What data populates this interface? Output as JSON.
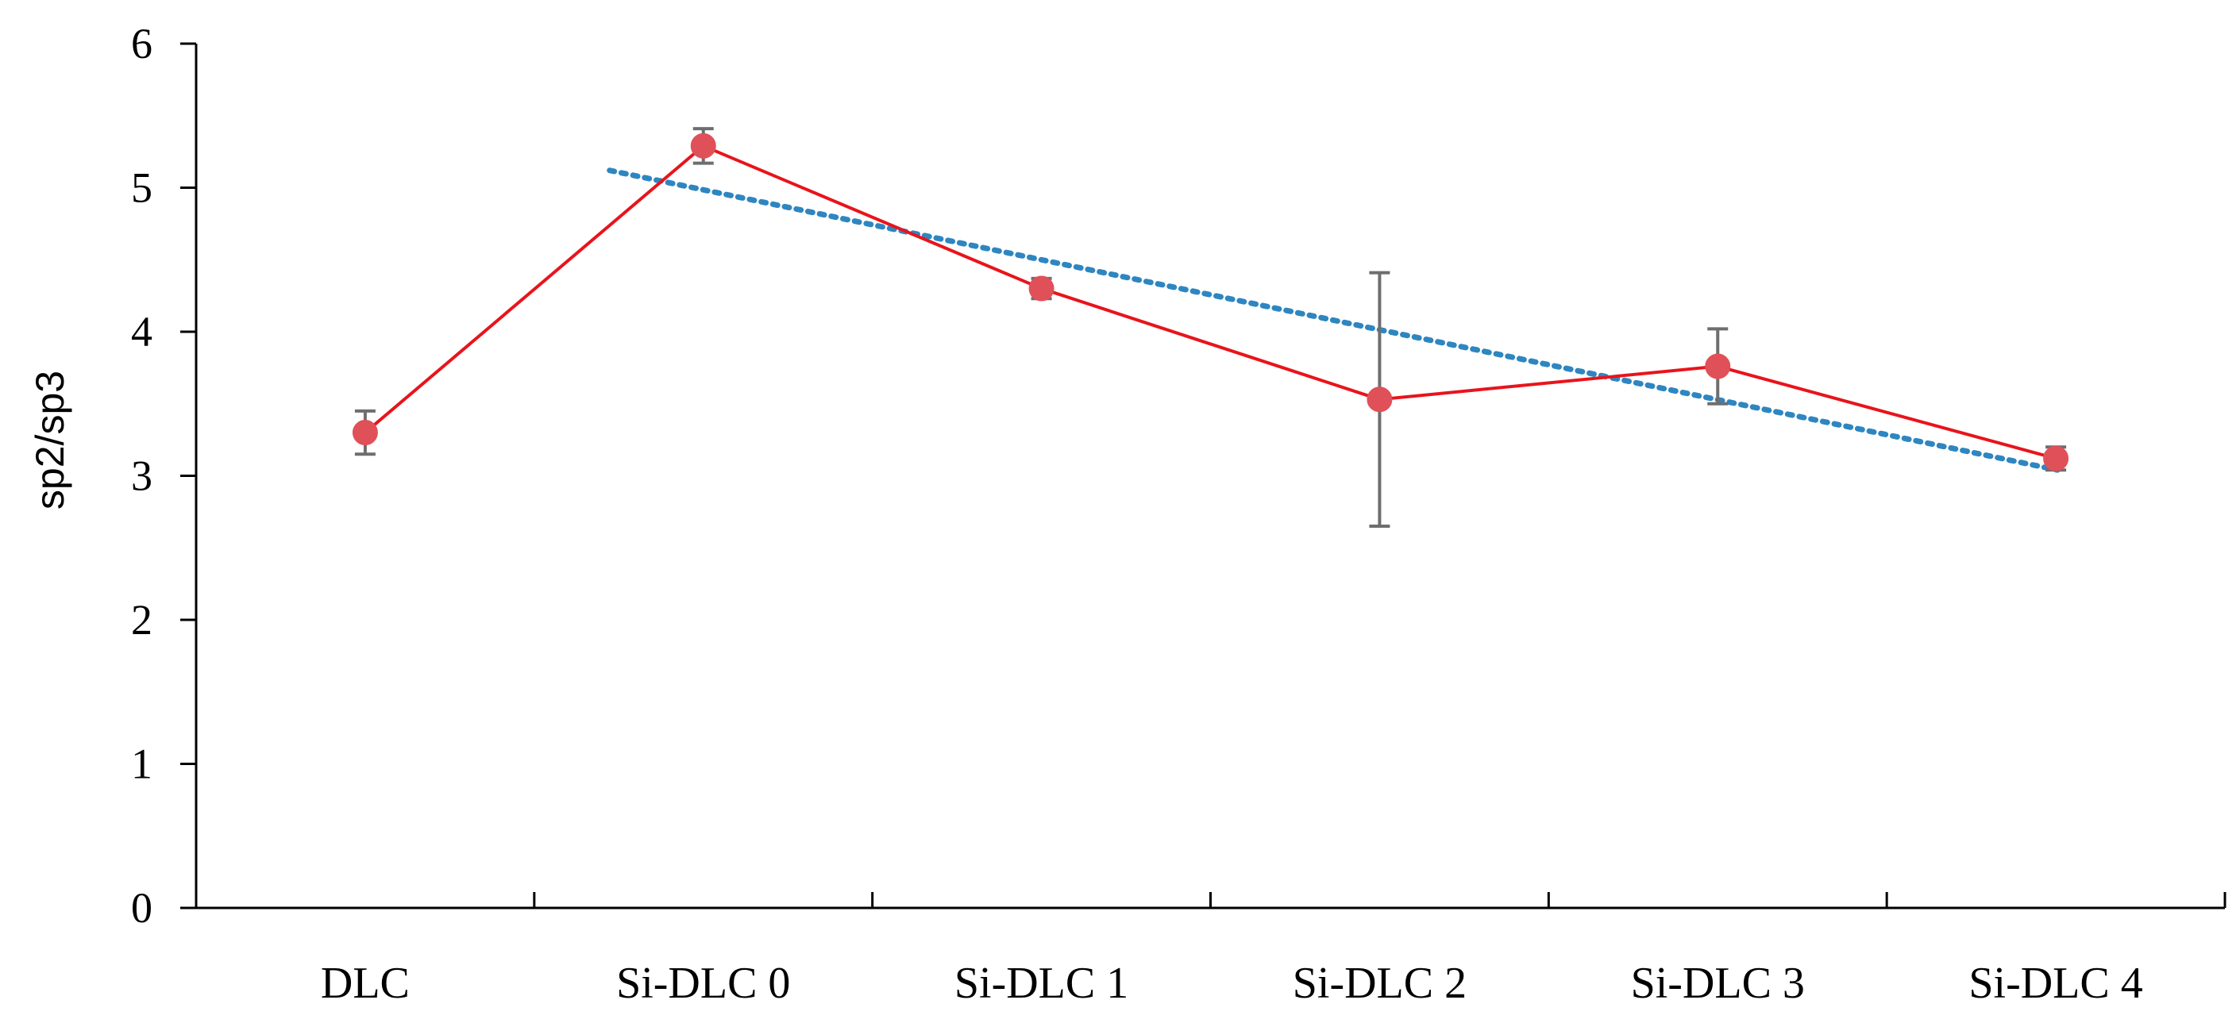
{
  "chart_data": {
    "type": "line",
    "title": "",
    "xlabel": "",
    "ylabel": "sp2/sp3",
    "ylim": [
      0,
      6
    ],
    "yticks": [
      "0",
      "1",
      "2",
      "3",
      "4",
      "5",
      "6"
    ],
    "categories": [
      "DLC",
      "Si-DLC 0",
      "Si-DLC 1",
      "Si-DLC 2",
      "Si-DLC 3",
      "Si-DLC 4"
    ],
    "grid": false,
    "legend": "none",
    "series": [
      {
        "name": "sp2/sp3",
        "values": [
          3.3,
          5.29,
          4.3,
          3.53,
          3.76,
          3.12
        ],
        "error": [
          0.15,
          0.12,
          0.07,
          0.88,
          0.26,
          0.08
        ],
        "color": "#e8141c",
        "marker_color": "#e05058",
        "error_color": "#6e6e6e"
      }
    ],
    "trendline": {
      "type": "linear",
      "style": "dotted",
      "color": "#2e86c1",
      "from_category": "Si-DLC 0",
      "to_category": "Si-DLC 4",
      "start_value": 5.12,
      "end_value": 3.04
    }
  }
}
